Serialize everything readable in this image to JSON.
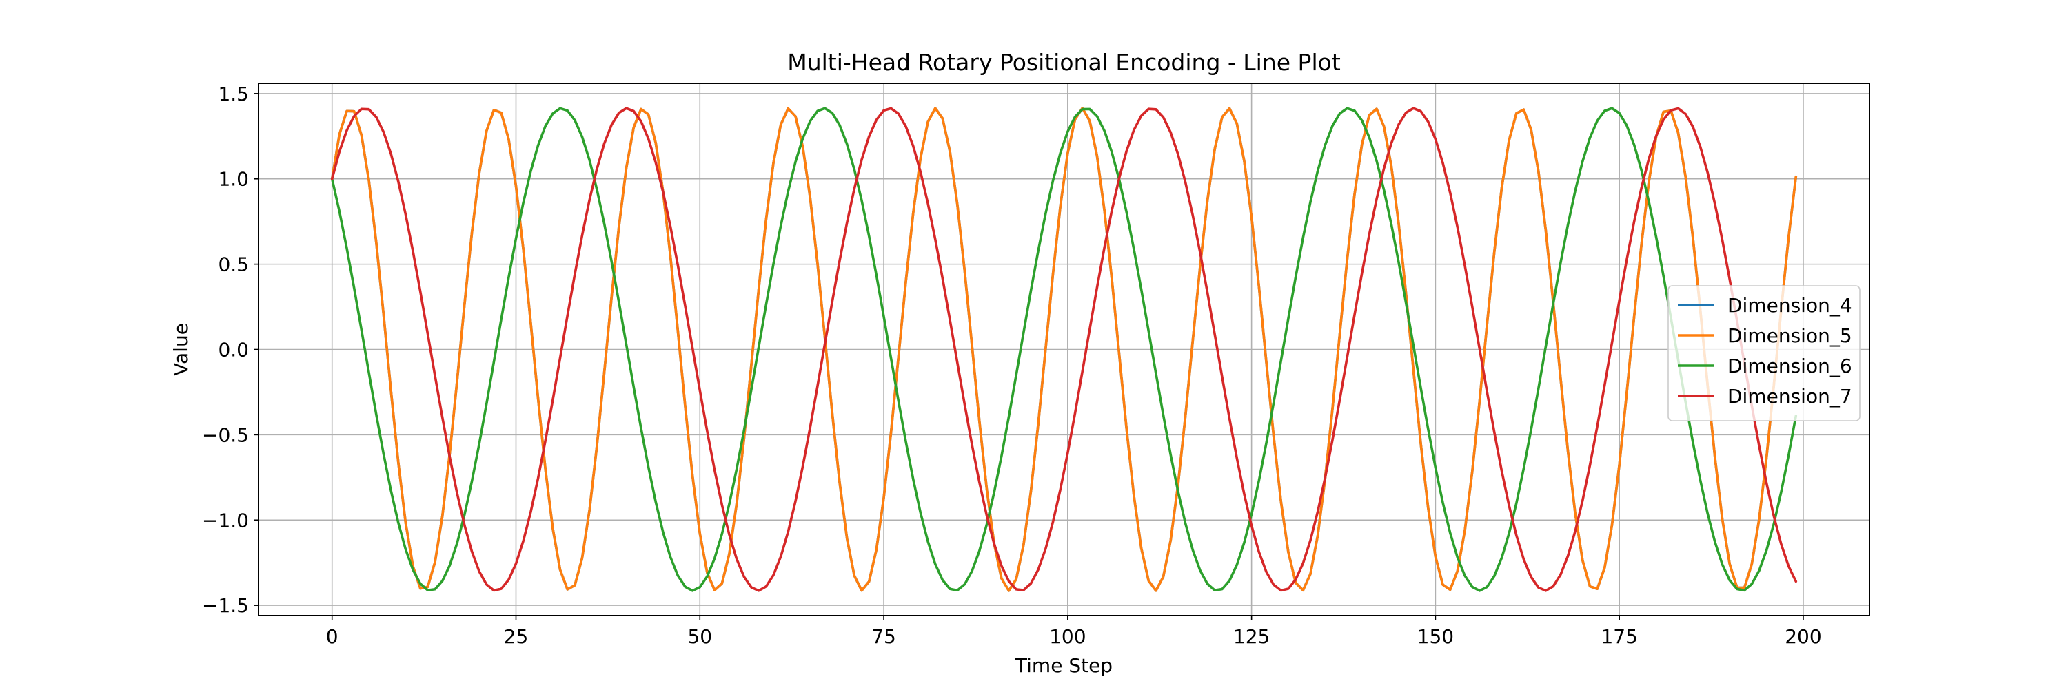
{
  "chart_data": {
    "type": "line",
    "title": "Multi-Head Rotary Positional Encoding - Line Plot",
    "xlabel": "Time Step",
    "ylabel": "Value",
    "xlim": [
      -10.0,
      209.0
    ],
    "ylim": [
      -1.56,
      1.56
    ],
    "x_ticks": [
      0,
      25,
      50,
      75,
      100,
      125,
      150,
      175,
      200
    ],
    "x_tick_labels": [
      "0",
      "25",
      "50",
      "75",
      "100",
      "125",
      "150",
      "175",
      "200"
    ],
    "y_ticks": [
      -1.5,
      -1.0,
      -0.5,
      0.0,
      0.5,
      1.0,
      1.5
    ],
    "y_tick_labels": [
      "−1.5",
      "−1.0",
      "−0.5",
      "0.0",
      "0.5",
      "1.0",
      "1.5"
    ],
    "grid": true,
    "legend_position": "center-right",
    "x": {
      "start": 0,
      "end": 199,
      "step": 1
    },
    "series": [
      {
        "name": "Dimension_4",
        "color": "#1f77b4",
        "formula": "sin(a*t) + cos(a*t)",
        "angular_frequency": 0.3158
      },
      {
        "name": "Dimension_5",
        "color": "#ff7f0e",
        "formula": "sin(a*t) + cos(a*t)",
        "angular_frequency": 0.3158
      },
      {
        "name": "Dimension_6",
        "color": "#2ca02c",
        "formula": "cos(a*t) - sin(a*t)",
        "angular_frequency": 0.1762
      },
      {
        "name": "Dimension_7",
        "color": "#d62728",
        "formula": "sin(a*t) + cos(a*t)",
        "angular_frequency": 0.1762
      }
    ]
  }
}
